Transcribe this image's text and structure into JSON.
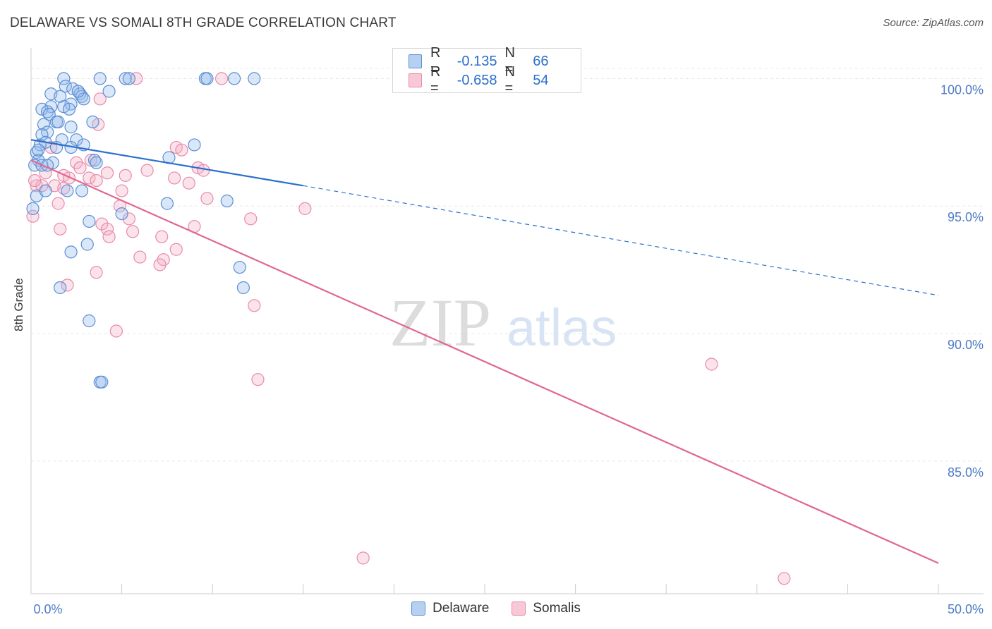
{
  "title": "DELAWARE VS SOMALI 8TH GRADE CORRELATION CHART",
  "source": "Source: ZipAtlas.com",
  "watermark": {
    "zip": "ZIP",
    "atlas": "atlas"
  },
  "legend": {
    "rows": [
      {
        "r_label": "R =",
        "r_value": "-0.135",
        "n_label": "N =",
        "n_value": "66"
      },
      {
        "r_label": "R =",
        "r_value": "-0.658",
        "n_label": "N =",
        "n_value": "54"
      }
    ]
  },
  "bottom_legend": [
    "Delaware",
    "Somalis"
  ],
  "chart_data": {
    "type": "scatter",
    "title": "DELAWARE VS SOMALI 8TH GRADE CORRELATION CHART",
    "xlabel": "",
    "ylabel": "8th Grade",
    "xlim": [
      0,
      50
    ],
    "ylim": [
      79.8,
      101.2
    ],
    "x_tick_labels": [
      "0.0%",
      "50.0%"
    ],
    "y_ticks": [
      85,
      90,
      95,
      100
    ],
    "y_tick_labels": [
      "85.0%",
      "90.0%",
      "95.0%",
      "100.0%"
    ],
    "colors": {
      "delaware": "#5b8fd4",
      "somalis": "#e98aa8",
      "delaware_line": "#2a6fcc",
      "somalis_line": "#e0678f",
      "axis_text": "#4d7cc4"
    },
    "series": [
      {
        "name": "Delaware",
        "r": -0.135,
        "n": 66,
        "trend": {
          "x0": 0,
          "y0": 97.6,
          "x1": 15,
          "y1": 95.8,
          "dash_to_x": 50,
          "dash_to_y": 91.5
        },
        "points": [
          [
            1.8,
            100
          ],
          [
            3.8,
            100
          ],
          [
            5.2,
            100
          ],
          [
            9.6,
            100
          ],
          [
            11.2,
            100
          ],
          [
            1.9,
            99.7
          ],
          [
            2.3,
            99.6
          ],
          [
            4.3,
            99.5
          ],
          [
            1.1,
            99.4
          ],
          [
            1.6,
            99.3
          ],
          [
            2.7,
            99.4
          ],
          [
            2.8,
            99.3
          ],
          [
            2.9,
            99.2
          ],
          [
            2.2,
            99.0
          ],
          [
            1.1,
            98.9
          ],
          [
            1.8,
            98.9
          ],
          [
            0.6,
            98.8
          ],
          [
            0.9,
            98.7
          ],
          [
            2.1,
            98.8
          ],
          [
            1.0,
            98.6
          ],
          [
            3.4,
            98.3
          ],
          [
            0.7,
            98.2
          ],
          [
            1.4,
            98.3
          ],
          [
            2.2,
            98.1
          ],
          [
            0.9,
            97.9
          ],
          [
            0.6,
            97.8
          ],
          [
            1.7,
            97.6
          ],
          [
            2.5,
            97.6
          ],
          [
            0.5,
            97.4
          ],
          [
            0.8,
            97.5
          ],
          [
            2.9,
            97.4
          ],
          [
            9.0,
            97.4
          ],
          [
            2.2,
            97.3
          ],
          [
            0.3,
            97.1
          ],
          [
            7.6,
            96.9
          ],
          [
            0.4,
            96.8
          ],
          [
            1.2,
            96.7
          ],
          [
            3.5,
            96.8
          ],
          [
            3.6,
            96.7
          ],
          [
            0.2,
            96.6
          ],
          [
            0.6,
            96.6
          ],
          [
            2.0,
            95.6
          ],
          [
            2.8,
            95.6
          ],
          [
            0.3,
            95.4
          ],
          [
            10.8,
            95.2
          ],
          [
            7.5,
            95.1
          ],
          [
            0.1,
            94.9
          ],
          [
            5.0,
            94.7
          ],
          [
            3.2,
            94.4
          ],
          [
            3.1,
            93.5
          ],
          [
            2.2,
            93.2
          ],
          [
            11.5,
            92.6
          ],
          [
            1.6,
            91.8
          ],
          [
            11.7,
            91.8
          ],
          [
            3.2,
            90.5
          ],
          [
            3.8,
            88.1
          ],
          [
            3.9,
            88.1
          ],
          [
            5.4,
            100
          ],
          [
            9.7,
            100
          ],
          [
            12.3,
            100
          ],
          [
            1.4,
            97.3
          ],
          [
            0.9,
            96.6
          ],
          [
            2.6,
            99.5
          ],
          [
            1.5,
            98.3
          ],
          [
            0.8,
            95.6
          ],
          [
            0.4,
            97.2
          ]
        ]
      },
      {
        "name": "Somalis",
        "r": -0.658,
        "n": 54,
        "trend": {
          "x0": 0,
          "y0": 96.8,
          "x1": 50,
          "y1": 81.0
        },
        "points": [
          [
            5.8,
            100
          ],
          [
            10.5,
            100
          ],
          [
            3.8,
            99.2
          ],
          [
            3.7,
            98.2
          ],
          [
            8.0,
            97.3
          ],
          [
            1.1,
            97.3
          ],
          [
            8.3,
            97.2
          ],
          [
            3.3,
            96.8
          ],
          [
            2.5,
            96.7
          ],
          [
            2.7,
            96.5
          ],
          [
            9.2,
            96.5
          ],
          [
            6.4,
            96.4
          ],
          [
            0.8,
            96.3
          ],
          [
            4.2,
            96.3
          ],
          [
            1.8,
            96.2
          ],
          [
            2.1,
            96.1
          ],
          [
            5.2,
            96.2
          ],
          [
            3.2,
            96.1
          ],
          [
            3.6,
            96.0
          ],
          [
            7.9,
            96.1
          ],
          [
            8.7,
            95.9
          ],
          [
            0.3,
            95.8
          ],
          [
            0.6,
            95.8
          ],
          [
            1.3,
            95.8
          ],
          [
            1.8,
            95.7
          ],
          [
            5.0,
            95.6
          ],
          [
            9.7,
            95.3
          ],
          [
            1.5,
            95.1
          ],
          [
            4.9,
            95.0
          ],
          [
            15.1,
            94.9
          ],
          [
            0.1,
            94.6
          ],
          [
            5.4,
            94.5
          ],
          [
            12.1,
            94.5
          ],
          [
            3.9,
            94.3
          ],
          [
            9.0,
            94.2
          ],
          [
            4.2,
            94.1
          ],
          [
            5.6,
            94.0
          ],
          [
            1.6,
            94.1
          ],
          [
            4.3,
            93.8
          ],
          [
            7.2,
            93.8
          ],
          [
            8.0,
            93.3
          ],
          [
            6.0,
            93.0
          ],
          [
            7.3,
            92.9
          ],
          [
            7.1,
            92.7
          ],
          [
            3.6,
            92.4
          ],
          [
            2.0,
            91.9
          ],
          [
            12.3,
            91.1
          ],
          [
            4.7,
            90.1
          ],
          [
            37.5,
            88.8
          ],
          [
            12.5,
            88.2
          ],
          [
            18.3,
            81.2
          ],
          [
            41.5,
            80.4
          ],
          [
            9.5,
            96.4
          ],
          [
            0.2,
            96.0
          ]
        ]
      }
    ]
  }
}
